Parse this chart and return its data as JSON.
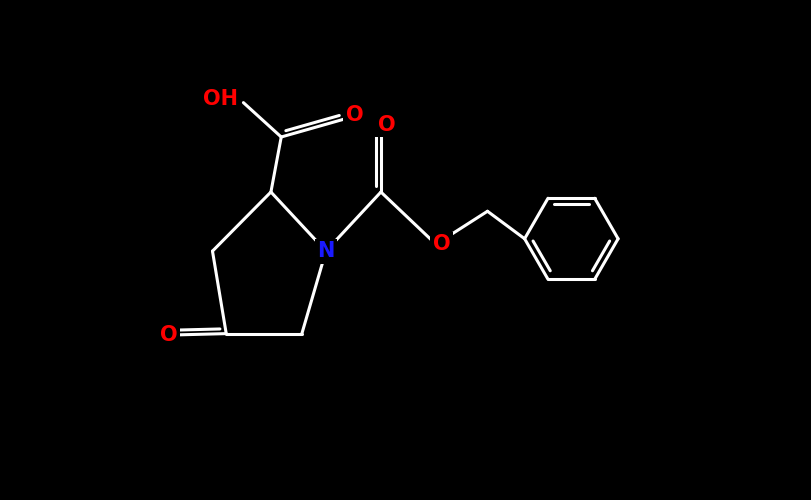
{
  "background_color": "#000000",
  "bond_color": "#ffffff",
  "atom_colors": {
    "O": "#ff0000",
    "N": "#1a1aff",
    "C": "#ffffff"
  },
  "bond_width": 2.2,
  "fig_width": 8.11,
  "fig_height": 5.0,
  "dpi": 100,
  "xlim": [
    -0.3,
    8.41
  ],
  "ylim": [
    -0.3,
    5.3
  ],
  "font_size": 15
}
